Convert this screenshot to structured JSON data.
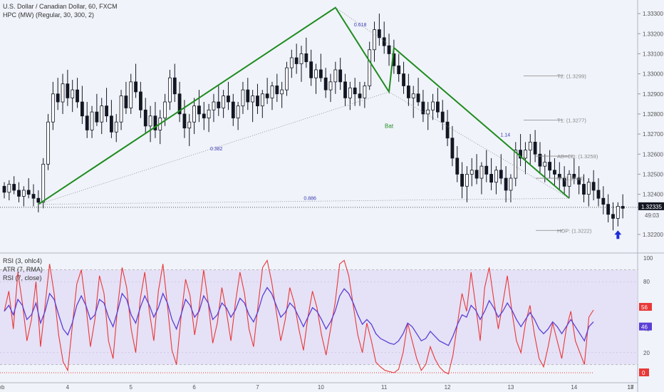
{
  "legend_price": {
    "title": "U.S. Dollar / Canadian Dollar, 60, FXCM",
    "indicator": "HPC (MW) (Regular, 30, 300, 2)"
  },
  "legend_osc": {
    "rsi3": "RSI (3, ohlc4)",
    "atr": "ATR (7, RMA)",
    "rsi7": "RSI (7, close)"
  },
  "colors": {
    "background": "#f0f3fa",
    "candle": "#131722",
    "pattern": "#1e8c1e",
    "rsi3": "#e83838",
    "rsi7": "#5a3fd6",
    "band": "#e0d8f3",
    "arrow": "#1d2ed8"
  },
  "chart_data": [
    {
      "type": "candlestick",
      "title": "U.S. Dollar / Canadian Dollar, 60, FXCM",
      "x_ticks": [
        "eb",
        "4",
        "5",
        "6",
        "7",
        "10",
        "11",
        "12",
        "13",
        "14",
        "17",
        "18"
      ],
      "y_ticks": [
        "1.33300",
        "1.33200",
        "1.33100",
        "1.33000",
        "1.32900",
        "1.32800",
        "1.32700",
        "1.32600",
        "1.32500",
        "1.32400",
        "1.32200"
      ],
      "ylim": [
        1.3215,
        1.3335
      ],
      "last_price": "1.32335",
      "countdown": "49:03",
      "ohlc": [
        [
          1.3244,
          1.3246,
          1.3238,
          1.3241
        ],
        [
          1.3241,
          1.3247,
          1.3237,
          1.3245
        ],
        [
          1.3245,
          1.3249,
          1.324,
          1.3242
        ],
        [
          1.3242,
          1.3246,
          1.3236,
          1.3239
        ],
        [
          1.3239,
          1.3244,
          1.3234,
          1.3242
        ],
        [
          1.3242,
          1.3248,
          1.3238,
          1.324
        ],
        [
          1.324,
          1.3245,
          1.3234,
          1.3238
        ],
        [
          1.3238,
          1.3242,
          1.3231,
          1.3236
        ],
        [
          1.3236,
          1.3258,
          1.3233,
          1.3255
        ],
        [
          1.3255,
          1.328,
          1.3252,
          1.3276
        ],
        [
          1.3276,
          1.3296,
          1.3272,
          1.329
        ],
        [
          1.329,
          1.3298,
          1.3282,
          1.3286
        ],
        [
          1.3286,
          1.33,
          1.328,
          1.3295
        ],
        [
          1.3295,
          1.3302,
          1.3284,
          1.3288
        ],
        [
          1.3288,
          1.3297,
          1.3281,
          1.3292
        ],
        [
          1.3292,
          1.3298,
          1.3283,
          1.3286
        ],
        [
          1.3286,
          1.3294,
          1.3275,
          1.3279
        ],
        [
          1.3279,
          1.3286,
          1.3268,
          1.3272
        ],
        [
          1.3272,
          1.3284,
          1.3268,
          1.3281
        ],
        [
          1.3281,
          1.329,
          1.3274,
          1.3276
        ],
        [
          1.3276,
          1.3288,
          1.327,
          1.3284
        ],
        [
          1.3284,
          1.3293,
          1.3276,
          1.3279
        ],
        [
          1.3279,
          1.3287,
          1.3268,
          1.3271
        ],
        [
          1.3271,
          1.328,
          1.3266,
          1.3276
        ],
        [
          1.3276,
          1.3292,
          1.3272,
          1.3289
        ],
        [
          1.3289,
          1.3296,
          1.328,
          1.3283
        ],
        [
          1.3283,
          1.33,
          1.328,
          1.3296
        ],
        [
          1.3296,
          1.3305,
          1.3288,
          1.3291
        ],
        [
          1.3291,
          1.3296,
          1.3278,
          1.3282
        ],
        [
          1.3282,
          1.3288,
          1.327,
          1.3274
        ],
        [
          1.3274,
          1.3284,
          1.3266,
          1.3279
        ],
        [
          1.3279,
          1.3286,
          1.3268,
          1.3272
        ],
        [
          1.3272,
          1.3282,
          1.3265,
          1.3278
        ],
        [
          1.3278,
          1.329,
          1.3274,
          1.3286
        ],
        [
          1.3286,
          1.3302,
          1.3282,
          1.3298
        ],
        [
          1.3298,
          1.3305,
          1.3286,
          1.329
        ],
        [
          1.329,
          1.3296,
          1.3276,
          1.328
        ],
        [
          1.328,
          1.3287,
          1.3268,
          1.3273
        ],
        [
          1.3273,
          1.328,
          1.3264,
          1.3276
        ],
        [
          1.3276,
          1.3288,
          1.327,
          1.3284
        ],
        [
          1.3284,
          1.3292,
          1.3276,
          1.328
        ],
        [
          1.328,
          1.3286,
          1.3272,
          1.3278
        ],
        [
          1.3278,
          1.3285,
          1.3271,
          1.3282
        ],
        [
          1.3282,
          1.329,
          1.3276,
          1.3286
        ],
        [
          1.3286,
          1.3294,
          1.3279,
          1.3283
        ],
        [
          1.3283,
          1.3292,
          1.3278,
          1.3289
        ],
        [
          1.3289,
          1.3296,
          1.3282,
          1.3286
        ],
        [
          1.3286,
          1.329,
          1.3274,
          1.3278
        ],
        [
          1.3278,
          1.3286,
          1.3272,
          1.3284
        ],
        [
          1.3284,
          1.3296,
          1.328,
          1.3292
        ],
        [
          1.3292,
          1.3298,
          1.3282,
          1.3286
        ],
        [
          1.3286,
          1.3292,
          1.3276,
          1.3289
        ],
        [
          1.3289,
          1.3295,
          1.328,
          1.3284
        ],
        [
          1.3284,
          1.3292,
          1.3278,
          1.329
        ],
        [
          1.329,
          1.3298,
          1.3285,
          1.3288
        ],
        [
          1.3288,
          1.3296,
          1.3282,
          1.3294
        ],
        [
          1.3294,
          1.33,
          1.3286,
          1.329
        ],
        [
          1.329,
          1.3296,
          1.3283,
          1.3292
        ],
        [
          1.3292,
          1.3306,
          1.3289,
          1.3303
        ],
        [
          1.3303,
          1.3312,
          1.3298,
          1.3308
        ],
        [
          1.3308,
          1.3315,
          1.33,
          1.3305
        ],
        [
          1.3305,
          1.3314,
          1.3296,
          1.331
        ],
        [
          1.331,
          1.3318,
          1.3303,
          1.3306
        ],
        [
          1.3306,
          1.3312,
          1.3294,
          1.3298
        ],
        [
          1.3298,
          1.3305,
          1.329,
          1.3302
        ],
        [
          1.3302,
          1.331,
          1.3296,
          1.3298
        ],
        [
          1.3298,
          1.3303,
          1.3288,
          1.3292
        ],
        [
          1.3292,
          1.33,
          1.3286,
          1.3296
        ],
        [
          1.3296,
          1.3306,
          1.329,
          1.3302
        ],
        [
          1.3302,
          1.3308,
          1.3292,
          1.3296
        ],
        [
          1.3296,
          1.33,
          1.3284,
          1.3288
        ],
        [
          1.3288,
          1.3296,
          1.3282,
          1.3293
        ],
        [
          1.3293,
          1.3298,
          1.3284,
          1.329
        ],
        [
          1.329,
          1.3296,
          1.3284,
          1.3288
        ],
        [
          1.3288,
          1.3296,
          1.3283,
          1.3294
        ],
        [
          1.3294,
          1.3316,
          1.3292,
          1.3312
        ],
        [
          1.3312,
          1.3326,
          1.3306,
          1.3322
        ],
        [
          1.3322,
          1.333,
          1.3314,
          1.3318
        ],
        [
          1.3318,
          1.3326,
          1.331,
          1.3314
        ],
        [
          1.3314,
          1.332,
          1.3304,
          1.331
        ],
        [
          1.331,
          1.3317,
          1.33,
          1.3304
        ],
        [
          1.3304,
          1.331,
          1.3296,
          1.33
        ],
        [
          1.33,
          1.3306,
          1.329,
          1.3294
        ],
        [
          1.3294,
          1.33,
          1.3284,
          1.3288
        ],
        [
          1.3288,
          1.3294,
          1.3278,
          1.329
        ],
        [
          1.329,
          1.3298,
          1.3284,
          1.3286
        ],
        [
          1.3286,
          1.3292,
          1.3276,
          1.328
        ],
        [
          1.328,
          1.3286,
          1.3272,
          1.3282
        ],
        [
          1.3282,
          1.329,
          1.3277,
          1.3286
        ],
        [
          1.3286,
          1.3293,
          1.3278,
          1.3281
        ],
        [
          1.3281,
          1.3287,
          1.3272,
          1.3276
        ],
        [
          1.3276,
          1.3282,
          1.3264,
          1.3268
        ],
        [
          1.3268,
          1.3274,
          1.3254,
          1.3258
        ],
        [
          1.3258,
          1.3264,
          1.3246,
          1.325
        ],
        [
          1.325,
          1.3256,
          1.3238,
          1.3244
        ],
        [
          1.3244,
          1.3254,
          1.3236,
          1.325
        ],
        [
          1.325,
          1.3258,
          1.3244,
          1.3252
        ],
        [
          1.3252,
          1.326,
          1.3245,
          1.3248
        ],
        [
          1.3248,
          1.3256,
          1.324,
          1.3254
        ],
        [
          1.3254,
          1.3262,
          1.3246,
          1.325
        ],
        [
          1.325,
          1.3258,
          1.3242,
          1.3246
        ],
        [
          1.3246,
          1.3254,
          1.324,
          1.3252
        ],
        [
          1.3252,
          1.326,
          1.3245,
          1.3248
        ],
        [
          1.3248,
          1.3254,
          1.3236,
          1.3242
        ],
        [
          1.3242,
          1.325,
          1.3236,
          1.3248
        ],
        [
          1.3248,
          1.3266,
          1.3244,
          1.3262
        ],
        [
          1.3262,
          1.327,
          1.3254,
          1.3258
        ],
        [
          1.3258,
          1.3266,
          1.325,
          1.3262
        ],
        [
          1.3262,
          1.327,
          1.3255,
          1.3266
        ],
        [
          1.3266,
          1.3272,
          1.3256,
          1.326
        ],
        [
          1.326,
          1.3266,
          1.325,
          1.3254
        ],
        [
          1.3254,
          1.326,
          1.3246,
          1.3256
        ],
        [
          1.3256,
          1.3262,
          1.3248,
          1.3252
        ],
        [
          1.3252,
          1.3258,
          1.3244,
          1.325
        ],
        [
          1.325,
          1.3256,
          1.3242,
          1.3248
        ],
        [
          1.3248,
          1.3254,
          1.324,
          1.3244
        ],
        [
          1.3244,
          1.3252,
          1.3238,
          1.325
        ],
        [
          1.325,
          1.3258,
          1.3245,
          1.3248
        ],
        [
          1.3248,
          1.3254,
          1.324,
          1.3245
        ],
        [
          1.3245,
          1.325,
          1.3236,
          1.324
        ],
        [
          1.324,
          1.3248,
          1.3234,
          1.3246
        ],
        [
          1.3246,
          1.3252,
          1.3237,
          1.3242
        ],
        [
          1.3242,
          1.3248,
          1.3234,
          1.3238
        ],
        [
          1.3238,
          1.3244,
          1.323,
          1.3235
        ],
        [
          1.3235,
          1.324,
          1.3226,
          1.323
        ],
        [
          1.323,
          1.3236,
          1.3222,
          1.3228
        ],
        [
          1.3228,
          1.3236,
          1.3224,
          1.3234
        ],
        [
          1.3234,
          1.324,
          1.3228,
          1.3233
        ]
      ],
      "pattern": {
        "name": "Bat",
        "points": [
          [
            7,
            1.3235
          ],
          [
            68,
            1.3333
          ],
          [
            79,
            1.3291
          ],
          [
            80,
            1.3313
          ],
          [
            116,
            1.3238
          ]
        ],
        "ratios": [
          "0.382",
          "0.618",
          "0.886",
          "1.14"
        ],
        "targets": [
          {
            "label": "T2: (1.3299)",
            "value": 1.3299
          },
          {
            "label": "T1: (1.3277)",
            "value": 1.3277
          },
          {
            "label": "AB=CD: (1.3259)",
            "value": 1.3259
          },
          {
            "label": "D: (1.3248)",
            "value": 1.3248
          },
          {
            "label": "HOP: (1.3222)",
            "value": 1.3222
          }
        ]
      }
    },
    {
      "type": "line",
      "title": "RSI (3, ohlc4)",
      "y_ticks": [
        "100",
        "80",
        "60",
        "40",
        "20"
      ],
      "ylim": [
        0,
        100
      ],
      "band": [
        10,
        90
      ],
      "series": [
        {
          "name": "RSI (3, ohlc4)",
          "last_label": "56",
          "values": [
            55,
            72,
            40,
            88,
            62,
            30,
            48,
            80,
            25,
            60,
            95,
            70,
            35,
            12,
            5,
            42,
            78,
            90,
            60,
            25,
            48,
            85,
            70,
            30,
            15,
            58,
            92,
            75,
            40,
            20,
            65,
            88,
            55,
            30,
            72,
            95,
            60,
            22,
            10,
            50,
            82,
            68,
            35,
            58,
            90,
            62,
            28,
            45,
            75,
            55,
            30,
            62,
            88,
            70,
            40,
            25,
            60,
            92,
            98,
            80,
            55,
            30,
            48,
            75,
            62,
            40,
            22,
            50,
            72,
            58,
            35,
            18,
            40,
            62,
            95,
            98,
            85,
            60,
            35,
            20,
            45,
            30,
            12,
            8,
            5,
            4,
            3,
            6,
            20,
            45,
            30,
            15,
            5,
            10,
            25,
            15,
            8,
            4,
            2,
            18,
            45,
            70,
            55,
            88,
            60,
            30,
            75,
            92,
            65,
            40,
            62,
            85,
            55,
            30,
            20,
            45,
            60,
            35,
            15,
            8,
            25,
            45,
            30,
            15,
            40,
            55,
            30,
            20,
            10,
            50,
            56
          ]
        },
        {
          "name": "RSI (7, close)",
          "last_label": "46",
          "values": [
            55,
            60,
            52,
            65,
            60,
            48,
            52,
            62,
            45,
            55,
            70,
            65,
            52,
            40,
            35,
            45,
            60,
            68,
            60,
            48,
            52,
            65,
            62,
            50,
            42,
            55,
            70,
            65,
            52,
            45,
            58,
            68,
            60,
            50,
            58,
            70,
            62,
            48,
            40,
            52,
            65,
            60,
            50,
            55,
            68,
            62,
            48,
            52,
            62,
            58,
            50,
            56,
            66,
            62,
            52,
            46,
            55,
            68,
            75,
            70,
            60,
            50,
            54,
            62,
            58,
            50,
            42,
            50,
            58,
            55,
            48,
            40,
            46,
            55,
            68,
            74,
            70,
            62,
            52,
            44,
            48,
            44,
            36,
            32,
            30,
            28,
            27,
            30,
            36,
            45,
            42,
            36,
            30,
            32,
            38,
            34,
            30,
            28,
            26,
            34,
            44,
            52,
            50,
            60,
            56,
            48,
            55,
            64,
            58,
            50,
            55,
            62,
            56,
            48,
            42,
            48,
            54,
            48,
            40,
            36,
            40,
            46,
            42,
            36,
            42,
            48,
            42,
            36,
            30,
            42,
            46
          ]
        }
      ],
      "secondary_label": "0"
    }
  ]
}
